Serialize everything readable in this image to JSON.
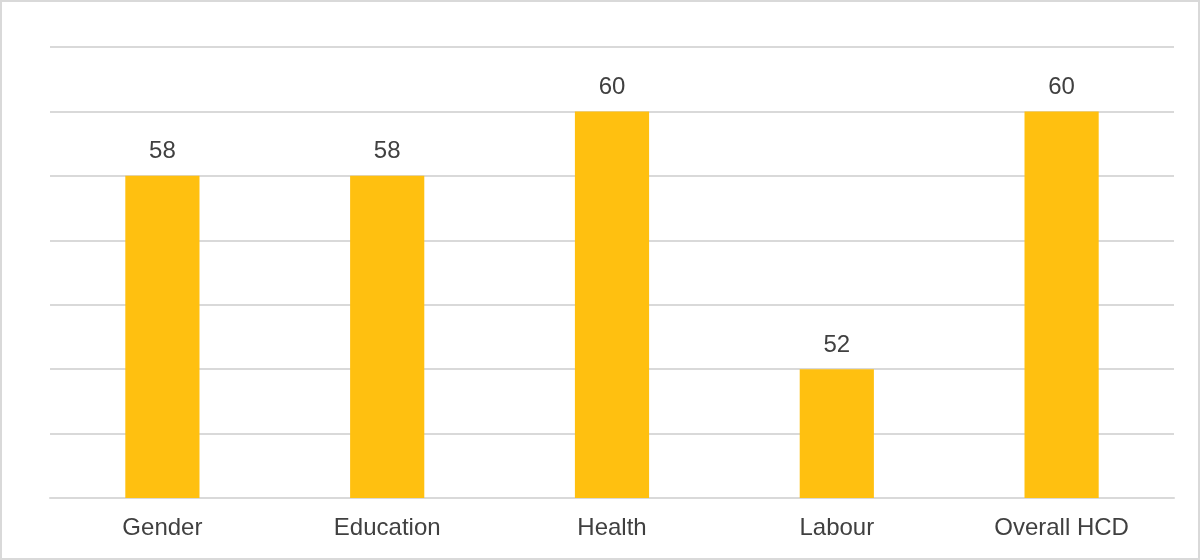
{
  "chart_data": {
    "type": "bar",
    "categories": [
      "Gender",
      "Education",
      "Health",
      "Labour",
      "Overall HCD"
    ],
    "values": [
      58,
      58,
      60,
      52,
      60
    ],
    "color": "#ffc010",
    "ylim": [
      48,
      62
    ],
    "yticks": [
      {
        "value": 48,
        "label": null
      },
      {
        "value": 50,
        "label": null
      },
      {
        "value": 52,
        "label": null
      },
      {
        "value": 54,
        "label": null
      },
      {
        "value": 56,
        "label": null
      },
      {
        "value": 58,
        "label": null
      },
      {
        "value": 60,
        "label": null
      },
      {
        "value": 62,
        "label": null
      }
    ],
    "tick_labels": "x",
    "grid": "y",
    "data_labels": true
  }
}
